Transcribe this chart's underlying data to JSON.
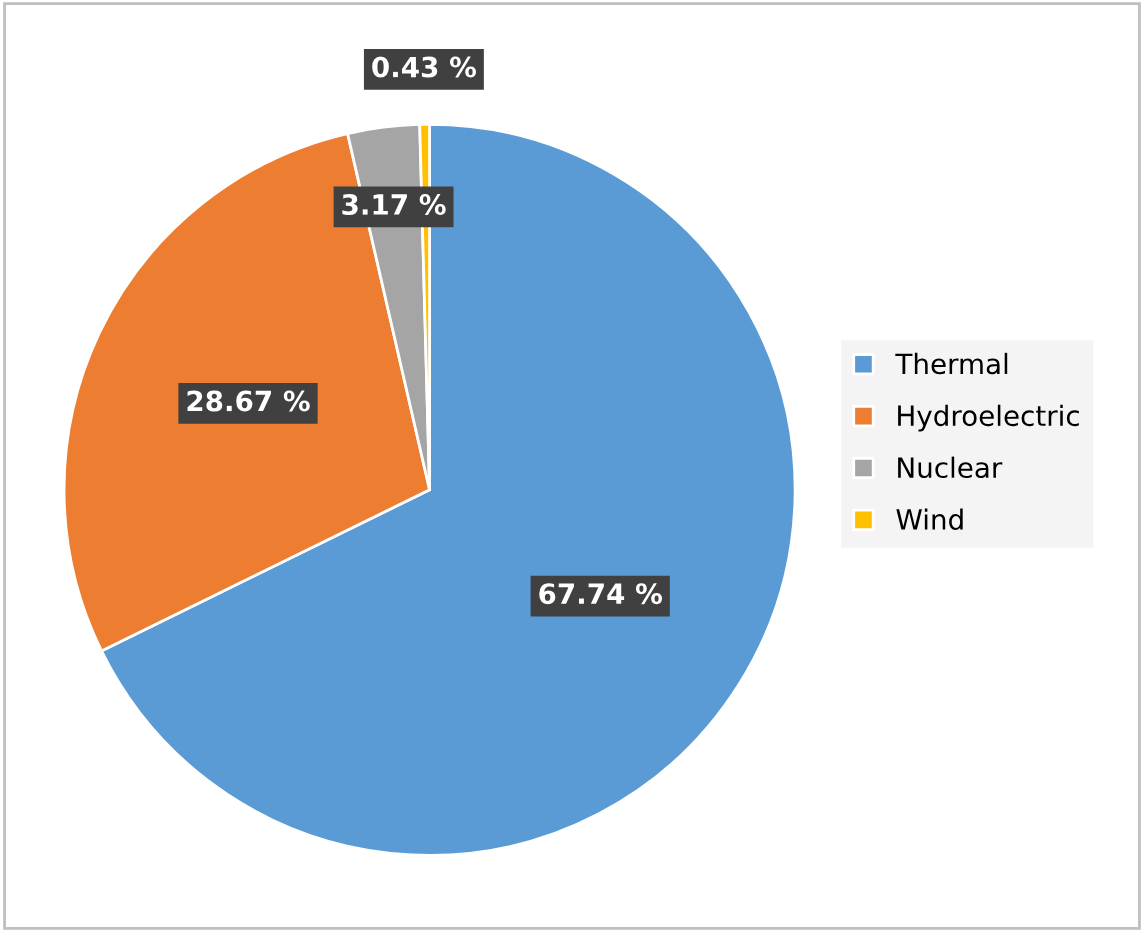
{
  "chart_data": {
    "type": "pie",
    "categories": [
      "Thermal",
      "Hydroelectric",
      "Nuclear",
      "Wind"
    ],
    "values": [
      67.74,
      28.67,
      3.17,
      0.43
    ],
    "colors": [
      "#5b9bd5",
      "#ed7d31",
      "#a5a5a5",
      "#ffc000"
    ],
    "value_labels": [
      "67.74 %",
      "28.67 %",
      "3.17 %",
      "0.43 %"
    ],
    "legend": "right"
  }
}
